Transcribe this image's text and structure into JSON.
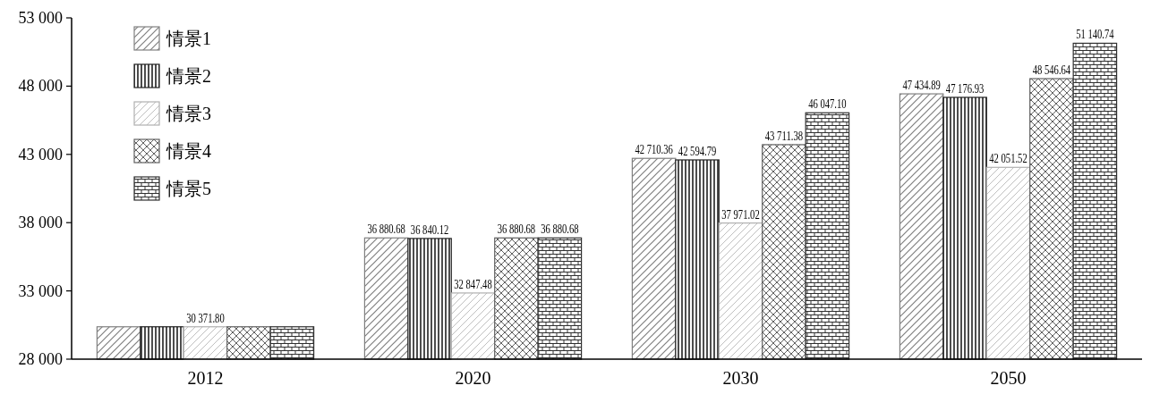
{
  "chart_data": {
    "type": "bar",
    "categories": [
      "2012",
      "2020",
      "2030",
      "2050"
    ],
    "series": [
      {
        "name": "情景1",
        "color": "#808080",
        "values": [
          30371.8,
          36880.68,
          42710.36,
          47434.89
        ],
        "value_labels": [
          null,
          "36 880.68",
          "42 710.36",
          "47 434.89"
        ]
      },
      {
        "name": "情景2",
        "color": "#202020",
        "values": [
          30371.8,
          36840.12,
          42594.79,
          47176.93
        ],
        "value_labels": [
          null,
          "36 840.12",
          "42 594.79",
          "47 176.93"
        ]
      },
      {
        "name": "情景3",
        "color": "#b0b0b0",
        "values": [
          30371.8,
          32847.48,
          37971.02,
          42051.52
        ],
        "value_labels": [
          "30 371.80",
          "32 847.48",
          "37 971.02",
          "42 051.52"
        ]
      },
      {
        "name": "情景4",
        "color": "#606060",
        "values": [
          30371.8,
          36880.68,
          43711.38,
          48546.64
        ],
        "value_labels": [
          null,
          "36 880.68",
          "43 711.38",
          "48 546.64"
        ]
      },
      {
        "name": "情景5",
        "color": "#303030",
        "values": [
          30371.8,
          36880.68,
          46047.1,
          51140.74
        ],
        "value_labels": [
          null,
          "36 880.68",
          "46 047.10",
          "51 140.74"
        ]
      }
    ],
    "ylim": [
      28000,
      53000
    ],
    "yticks": [
      {
        "value": 28000,
        "label": "28 000"
      },
      {
        "value": 33000,
        "label": "33 000"
      },
      {
        "value": 38000,
        "label": "38 000"
      },
      {
        "value": 43000,
        "label": "43 000"
      },
      {
        "value": 48000,
        "label": "48 000"
      },
      {
        "value": 53000,
        "label": "53 000"
      }
    ],
    "legend": "top left"
  }
}
